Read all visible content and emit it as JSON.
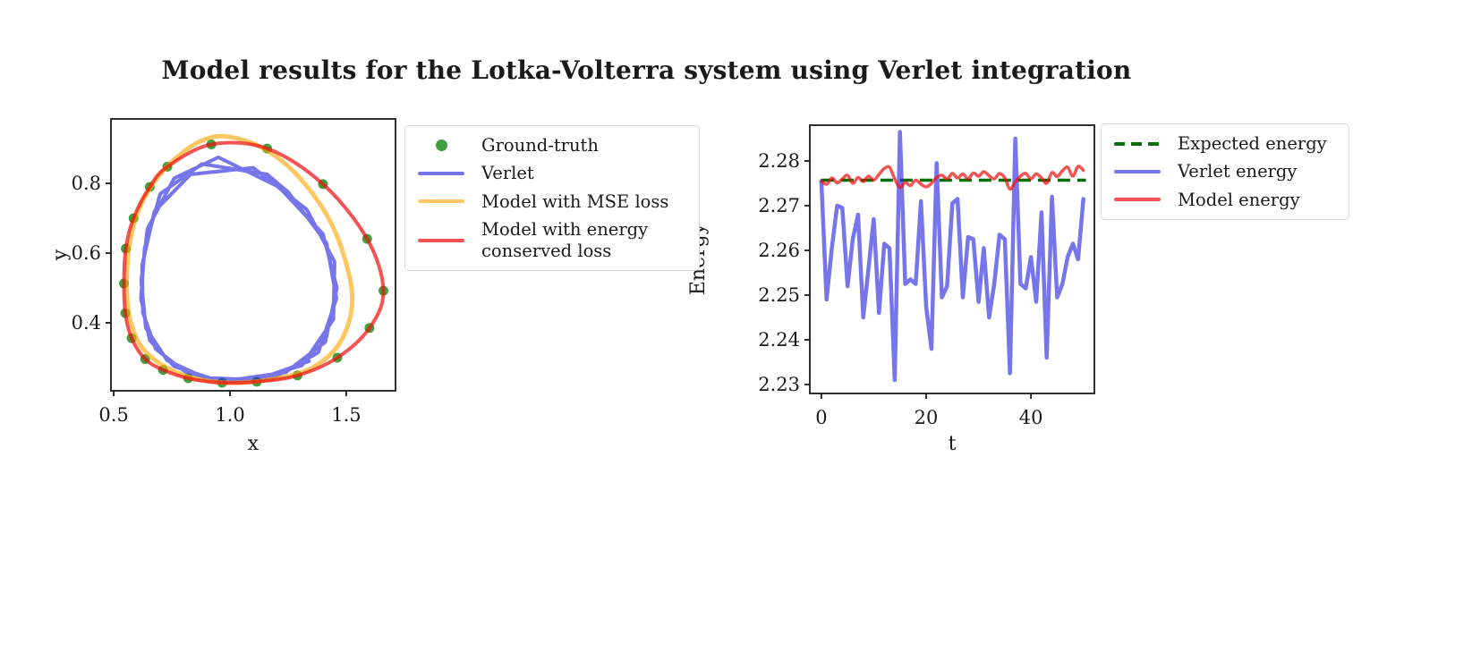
{
  "title": "Model results for the Lotka-Volterra system using Verlet integration",
  "text_color": "#1a1a1a",
  "background_color": "#ffffff",
  "chart_data": [
    {
      "id": "phase",
      "type": "line",
      "xlabel": "x",
      "ylabel": "y",
      "xlim": [
        0.488,
        1.712
      ],
      "ylim": [
        0.205,
        0.985
      ],
      "xticks": [
        0.5,
        1.0,
        1.5
      ],
      "xtick_labels": [
        "0.5",
        "1.0",
        "1.5"
      ],
      "yticks": [
        0.4,
        0.6,
        0.8
      ],
      "ytick_labels": [
        "0.4",
        "0.6",
        "0.8"
      ],
      "grid": false,
      "legend_position": "outside-right",
      "series": [
        {
          "name": "Ground-truth",
          "kind": "scatter",
          "color": "#008000",
          "opacity": 0.75,
          "marker_radius": 5.5,
          "points": [
            [
              0.92,
              0.912
            ],
            [
              1.16,
              0.9
            ],
            [
              1.4,
              0.798
            ],
            [
              1.59,
              0.641
            ],
            [
              1.66,
              0.492
            ],
            [
              1.6,
              0.385
            ],
            [
              1.462,
              0.3
            ],
            [
              1.29,
              0.249
            ],
            [
              1.115,
              0.231
            ],
            [
              0.966,
              0.228
            ],
            [
              0.82,
              0.241
            ],
            [
              0.712,
              0.265
            ],
            [
              0.635,
              0.296
            ],
            [
              0.577,
              0.356
            ],
            [
              0.55,
              0.428
            ],
            [
              0.544,
              0.513
            ],
            [
              0.552,
              0.613
            ],
            [
              0.585,
              0.7
            ],
            [
              0.655,
              0.79
            ],
            [
              0.731,
              0.848
            ]
          ]
        },
        {
          "name": "Verlet",
          "kind": "line",
          "color": "#2222dd",
          "opacity": 0.62,
          "width": 4,
          "points": [
            [
              1.0,
              0.235
            ],
            [
              1.24,
              0.258
            ],
            [
              1.41,
              0.345
            ],
            [
              1.46,
              0.5
            ],
            [
              1.4,
              0.655
            ],
            [
              1.21,
              0.79
            ],
            [
              0.95,
              0.875
            ],
            [
              0.76,
              0.815
            ],
            [
              0.645,
              0.67
            ],
            [
              0.618,
              0.52
            ],
            [
              0.638,
              0.385
            ],
            [
              0.73,
              0.292
            ],
            [
              0.89,
              0.243
            ],
            [
              1.1,
              0.236
            ],
            [
              1.31,
              0.278
            ],
            [
              1.445,
              0.41
            ],
            [
              1.45,
              0.575
            ],
            [
              1.33,
              0.725
            ],
            [
              1.1,
              0.845
            ],
            [
              0.83,
              0.826
            ],
            [
              0.675,
              0.72
            ],
            [
              0.622,
              0.565
            ],
            [
              0.625,
              0.43
            ],
            [
              0.68,
              0.325
            ],
            [
              0.81,
              0.258
            ],
            [
              0.98,
              0.231
            ],
            [
              1.2,
              0.247
            ],
            [
              1.38,
              0.315
            ],
            [
              1.458,
              0.47
            ],
            [
              1.415,
              0.63
            ],
            [
              1.25,
              0.775
            ],
            [
              1.16,
              0.826
            ],
            [
              0.88,
              0.856
            ],
            [
              0.7,
              0.77
            ],
            [
              0.633,
              0.615
            ],
            [
              0.617,
              0.47
            ],
            [
              0.655,
              0.35
            ],
            [
              0.76,
              0.275
            ],
            [
              0.93,
              0.238
            ],
            [
              1.13,
              0.24
            ],
            [
              1.34,
              0.29
            ]
          ]
        },
        {
          "name": "Model with MSE loss",
          "kind": "line-smooth-closed",
          "color": "#ffa500",
          "opacity": 0.62,
          "width": 5,
          "points": [
            [
              0.98,
              0.935
            ],
            [
              1.13,
              0.905
            ],
            [
              1.28,
              0.83
            ],
            [
              1.42,
              0.705
            ],
            [
              1.5,
              0.57
            ],
            [
              1.525,
              0.45
            ],
            [
              1.47,
              0.34
            ],
            [
              1.35,
              0.27
            ],
            [
              1.18,
              0.238
            ],
            [
              1.0,
              0.228
            ],
            [
              0.84,
              0.242
            ],
            [
              0.71,
              0.278
            ],
            [
              0.615,
              0.335
            ],
            [
              0.567,
              0.42
            ],
            [
              0.556,
              0.52
            ],
            [
              0.568,
              0.625
            ],
            [
              0.605,
              0.72
            ],
            [
              0.67,
              0.8
            ],
            [
              0.76,
              0.868
            ],
            [
              0.87,
              0.92
            ]
          ]
        },
        {
          "name": "Model with energy conserved loss",
          "legend_label_lines": [
            "Model with energy",
            "conserved loss"
          ],
          "kind": "line-smooth-closed",
          "color": "#ee1111",
          "opacity": 0.72,
          "width": 4,
          "points": [
            [
              0.92,
              0.912
            ],
            [
              1.16,
              0.9
            ],
            [
              1.4,
              0.798
            ],
            [
              1.59,
              0.641
            ],
            [
              1.66,
              0.492
            ],
            [
              1.6,
              0.385
            ],
            [
              1.462,
              0.3
            ],
            [
              1.29,
              0.249
            ],
            [
              1.115,
              0.231
            ],
            [
              0.966,
              0.228
            ],
            [
              0.82,
              0.241
            ],
            [
              0.712,
              0.265
            ],
            [
              0.635,
              0.296
            ],
            [
              0.577,
              0.356
            ],
            [
              0.55,
              0.428
            ],
            [
              0.544,
              0.513
            ],
            [
              0.552,
              0.613
            ],
            [
              0.585,
              0.7
            ],
            [
              0.655,
              0.79
            ],
            [
              0.731,
              0.848
            ]
          ]
        }
      ]
    },
    {
      "id": "energy",
      "type": "line",
      "xlabel": "t",
      "ylabel": "Energy",
      "xlim": [
        -2.2,
        52.1
      ],
      "ylim": [
        2.228,
        2.288
      ],
      "xticks": [
        0,
        20,
        40
      ],
      "xtick_labels": [
        "0",
        "20",
        "40"
      ],
      "yticks": [
        2.23,
        2.24,
        2.25,
        2.26,
        2.27,
        2.28
      ],
      "ytick_labels": [
        "2.23",
        "2.24",
        "2.25",
        "2.26",
        "2.27",
        "2.28"
      ],
      "grid": false,
      "legend_position": "outside-right",
      "series": [
        {
          "name": "Expected energy",
          "kind": "hline",
          "color": "#056e05",
          "opacity": 1,
          "width": 3.5,
          "dash": [
            14,
            8
          ],
          "y": 2.2757,
          "x_start": 0,
          "x_end": 50.5
        },
        {
          "name": "Verlet energy",
          "kind": "line",
          "color": "#2222dd",
          "opacity": 0.62,
          "width": 4.5,
          "x_start": 0,
          "x_step": 1,
          "values": [
            2.2755,
            2.249,
            2.2605,
            2.27,
            2.2695,
            2.252,
            2.2625,
            2.268,
            2.245,
            2.256,
            2.267,
            2.246,
            2.2615,
            2.2605,
            2.231,
            2.2865,
            2.2525,
            2.2535,
            2.2525,
            2.271,
            2.2475,
            2.238,
            2.2795,
            2.2495,
            2.252,
            2.2705,
            2.2715,
            2.2495,
            2.263,
            2.2625,
            2.2485,
            2.2605,
            2.245,
            2.2525,
            2.2635,
            2.2625,
            2.2325,
            2.285,
            2.2525,
            2.2515,
            2.2585,
            2.2485,
            2.2685,
            2.236,
            2.272,
            2.2495,
            2.2525,
            2.2585,
            2.2615,
            2.258,
            2.2715
          ]
        },
        {
          "name": "Model energy",
          "kind": "line-smooth",
          "color": "#ee1111",
          "opacity": 0.72,
          "width": 3.5,
          "x_start": 0,
          "x_step": 1,
          "values": [
            2.2755,
            2.2748,
            2.2762,
            2.2751,
            2.276,
            2.2768,
            2.275,
            2.2763,
            2.2754,
            2.2766,
            2.2757,
            2.277,
            2.2783,
            2.2786,
            2.276,
            2.2741,
            2.2752,
            2.2745,
            2.2757,
            2.2748,
            2.2742,
            2.275,
            2.2763,
            2.2768,
            2.276,
            2.2772,
            2.2762,
            2.2771,
            2.276,
            2.2773,
            2.2766,
            2.2776,
            2.2767,
            2.276,
            2.2772,
            2.2762,
            2.2737,
            2.2753,
            2.2766,
            2.2772,
            2.276,
            2.2771,
            2.2762,
            2.275,
            2.2774,
            2.2765,
            2.2778,
            2.2786,
            2.2766,
            2.2788,
            2.2779
          ]
        }
      ]
    }
  ]
}
